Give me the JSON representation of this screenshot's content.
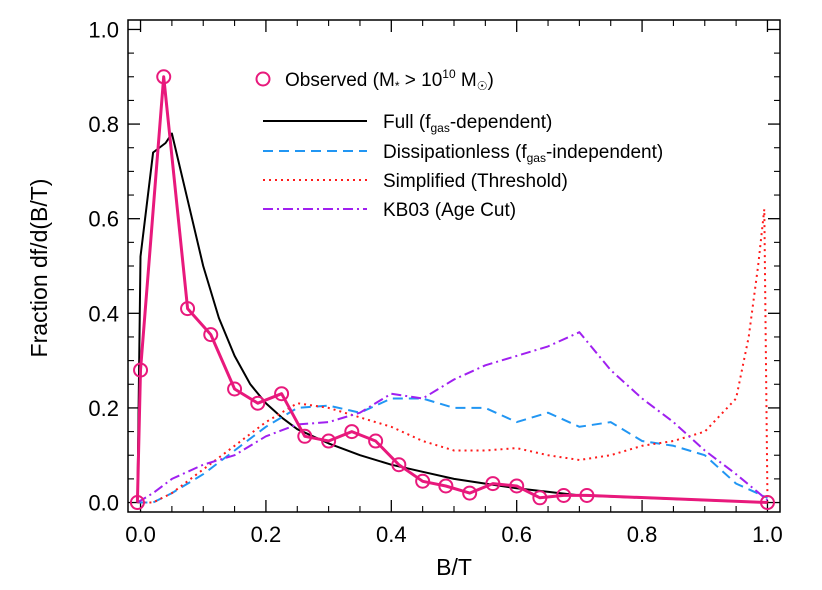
{
  "chart_data": {
    "type": "line",
    "xlabel": "B/T",
    "ylabel": "Fraction df/d(B/T)",
    "xlim": [
      -0.02,
      1.02
    ],
    "ylim": [
      -0.02,
      1.02
    ],
    "x_ticks": [
      0.0,
      0.2,
      0.4,
      0.6,
      0.8,
      1.0
    ],
    "y_ticks": [
      0.0,
      0.2,
      0.4,
      0.6,
      0.8,
      1.0
    ],
    "x_tick_labels": [
      "0.0",
      "0.2",
      "0.4",
      "0.6",
      "0.8",
      "1.0"
    ],
    "y_tick_labels": [
      "0.0",
      "0.2",
      "0.4",
      "0.6",
      "0.8",
      "1.0"
    ],
    "grid": false,
    "legend_position": "top-right",
    "series": [
      {
        "name": "Observed (M* > 10^10 M☉)",
        "legend_label": {
          "main": "Observed (M",
          "sub1": "*",
          "mid": " > 10",
          "sup": "10",
          "end": " M",
          "sub2": "☉",
          "close": ")"
        },
        "color": "#e8197c",
        "style": "solid-markers",
        "x": [
          -0.005,
          0.0,
          0.037,
          0.075,
          0.112,
          0.15,
          0.187,
          0.225,
          0.262,
          0.3,
          0.337,
          0.375,
          0.412,
          0.45,
          0.487,
          0.525,
          0.562,
          0.6,
          0.637,
          0.675,
          0.712,
          1.0
        ],
        "y": [
          0.0,
          0.28,
          0.9,
          0.41,
          0.355,
          0.24,
          0.21,
          0.23,
          0.14,
          0.13,
          0.15,
          0.13,
          0.08,
          0.045,
          0.035,
          0.02,
          0.04,
          0.035,
          0.01,
          0.015,
          0.015,
          0.0
        ]
      },
      {
        "name": "Full (fgas-dependent)",
        "legend_label": {
          "main": "Full (f",
          "sub": "gas",
          "end": "-dependent)"
        },
        "color": "#000000",
        "style": "solid",
        "x": [
          -0.005,
          0.0,
          0.02,
          0.04,
          0.05,
          0.075,
          0.1,
          0.125,
          0.15,
          0.175,
          0.2,
          0.225,
          0.25,
          0.3,
          0.35,
          0.4,
          0.45,
          0.5,
          0.55,
          0.6,
          0.7,
          0.8,
          0.9,
          1.0
        ],
        "y": [
          0.0,
          0.52,
          0.74,
          0.76,
          0.78,
          0.64,
          0.5,
          0.39,
          0.31,
          0.25,
          0.21,
          0.18,
          0.155,
          0.125,
          0.1,
          0.08,
          0.065,
          0.05,
          0.04,
          0.03,
          0.015,
          0.01,
          0.005,
          0.0
        ]
      },
      {
        "name": "Dissipationless (fgas-independent)",
        "legend_label": {
          "main": "Dissipationless (f",
          "sub": "gas",
          "end": "-independent)"
        },
        "color": "#2196f3",
        "style": "dashed",
        "x": [
          -0.005,
          0.02,
          0.05,
          0.1,
          0.15,
          0.2,
          0.25,
          0.3,
          0.35,
          0.4,
          0.45,
          0.5,
          0.55,
          0.6,
          0.65,
          0.7,
          0.75,
          0.8,
          0.85,
          0.9,
          0.95,
          1.0
        ],
        "y": [
          0.0,
          0.0,
          0.02,
          0.06,
          0.11,
          0.16,
          0.2,
          0.205,
          0.19,
          0.22,
          0.22,
          0.2,
          0.2,
          0.17,
          0.19,
          0.16,
          0.17,
          0.13,
          0.12,
          0.1,
          0.04,
          0.01
        ]
      },
      {
        "name": "Simplified (Threshold)",
        "legend_label": {
          "main": "Simplified (Threshold)"
        },
        "color": "#ff1a1a",
        "style": "dotted",
        "x": [
          -0.005,
          0.02,
          0.05,
          0.1,
          0.15,
          0.2,
          0.25,
          0.3,
          0.35,
          0.4,
          0.45,
          0.5,
          0.55,
          0.6,
          0.65,
          0.7,
          0.75,
          0.8,
          0.85,
          0.9,
          0.95,
          0.97,
          0.985,
          0.995,
          1.0
        ],
        "y": [
          0.0,
          0.0,
          0.02,
          0.07,
          0.12,
          0.17,
          0.21,
          0.2,
          0.18,
          0.16,
          0.13,
          0.11,
          0.11,
          0.115,
          0.1,
          0.09,
          0.1,
          0.12,
          0.13,
          0.15,
          0.22,
          0.35,
          0.5,
          0.62,
          0.0
        ]
      },
      {
        "name": "KB03 (Age Cut)",
        "legend_label": {
          "main": "KB03 (Age Cut)"
        },
        "color": "#a020f0",
        "style": "dashdot",
        "x": [
          -0.005,
          0.02,
          0.05,
          0.1,
          0.15,
          0.2,
          0.25,
          0.3,
          0.35,
          0.4,
          0.45,
          0.5,
          0.55,
          0.6,
          0.65,
          0.7,
          0.75,
          0.8,
          0.85,
          0.9,
          0.95,
          1.0
        ],
        "y": [
          0.0,
          0.02,
          0.05,
          0.08,
          0.1,
          0.14,
          0.165,
          0.17,
          0.19,
          0.23,
          0.22,
          0.26,
          0.29,
          0.31,
          0.33,
          0.36,
          0.28,
          0.22,
          0.17,
          0.11,
          0.06,
          0.005
        ]
      }
    ]
  }
}
